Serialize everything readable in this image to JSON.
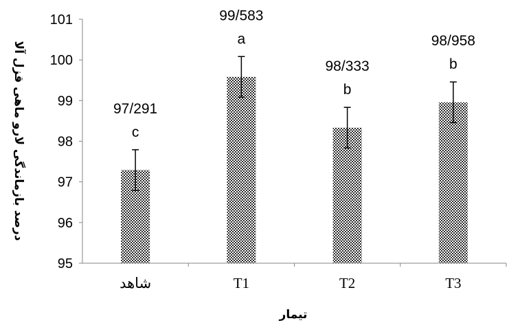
{
  "chart_data": {
    "type": "bar",
    "categories": [
      "شاهد",
      "T1",
      "T2",
      "T3"
    ],
    "values": [
      97.291,
      99.583,
      98.333,
      98.958
    ],
    "value_labels": [
      "97/291",
      "99/583",
      "98/333",
      "98/958"
    ],
    "significance_letters": [
      "c",
      "a",
      "b",
      "b"
    ],
    "error": [
      0.5,
      0.5,
      0.5,
      0.5
    ],
    "xlabel": "تیمار",
    "ylabel": "درصد بازماندگی لارو ماهی قزل آلا",
    "ylim": [
      95,
      101
    ],
    "yticks": [
      "95",
      "96",
      "97",
      "98",
      "99",
      "100",
      "101"
    ],
    "grid": false,
    "bar_fill": "#2a2a2a",
    "pattern_color": "#ffffff"
  }
}
